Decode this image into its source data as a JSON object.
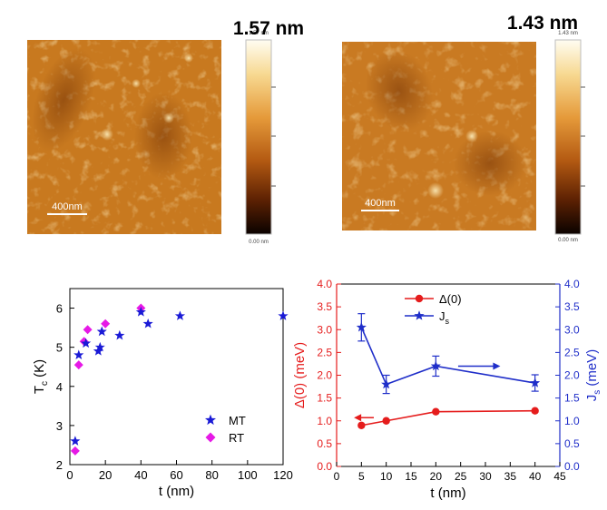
{
  "afm_panels": [
    {
      "roughness_label": "1.57 nm",
      "scalebar_label": "400nm",
      "colorbar_max": "1.57 nm",
      "colorbar_min": "0.00 nm"
    },
    {
      "roughness_label": "1.43 nm",
      "scalebar_label": "400nm",
      "colorbar_max": "1.43 nm",
      "colorbar_min": "0.00 nm"
    }
  ],
  "colors": {
    "mt": "#1a1ad6",
    "rt": "#e619e6",
    "delta": "#e51c1c",
    "js": "#1f2ec9"
  },
  "chart_data": [
    {
      "type": "scatter",
      "title": "",
      "xlabel": "t (nm)",
      "ylabel_main": "T",
      "ylabel_sub": "c",
      "ylabel_unit": " (K)",
      "xlim": [
        0,
        120
      ],
      "ylim": [
        2,
        6.5
      ],
      "xticks": [
        "0",
        "20",
        "40",
        "60",
        "80",
        "100",
        "120"
      ],
      "yticks": [
        "2",
        "3",
        "4",
        "5",
        "6"
      ],
      "legend_position": "bottom-right",
      "series": [
        {
          "name": "MT",
          "marker": "star",
          "x": [
            3,
            5,
            9,
            16,
            17,
            18,
            28,
            40,
            44,
            62,
            120
          ],
          "y": [
            2.6,
            4.8,
            5.1,
            4.9,
            5.0,
            5.4,
            5.3,
            5.9,
            5.6,
            5.8,
            5.8
          ]
        },
        {
          "name": "RT",
          "marker": "diamond",
          "x": [
            3,
            5,
            8,
            10,
            20,
            40
          ],
          "y": [
            2.35,
            4.55,
            5.15,
            5.45,
            5.6,
            6.0
          ]
        }
      ]
    },
    {
      "type": "line",
      "title": "",
      "xlabel": "t (nm)",
      "ylabel_left": "Δ(0) (meV)",
      "ylabel_right_main": "J",
      "ylabel_right_sub": "s",
      "ylabel_right_unit": " (meV)",
      "xlim": [
        0,
        45
      ],
      "ylim_left": [
        0,
        4
      ],
      "ylim_right": [
        0,
        4
      ],
      "xticks": [
        "0",
        "5",
        "10",
        "15",
        "20",
        "25",
        "30",
        "35",
        "40",
        "45"
      ],
      "yticks_left": [
        "0.0",
        "0.5",
        "1.0",
        "1.5",
        "2.0",
        "2.5",
        "3.0",
        "3.5",
        "4.0"
      ],
      "yticks_right": [
        "0.0",
        "0.5",
        "1.0",
        "1.5",
        "2.0",
        "2.5",
        "3.0",
        "3.5",
        "4.0"
      ],
      "legend_position": "top-center",
      "series": [
        {
          "name": "Δ(0)",
          "axis": "left",
          "marker": "circle",
          "x": [
            5,
            10,
            20,
            40
          ],
          "y": [
            0.9,
            1.0,
            1.2,
            1.22
          ]
        },
        {
          "name": "J",
          "name_sub": "s",
          "axis": "right",
          "marker": "star",
          "x": [
            5,
            10,
            20,
            40
          ],
          "y": [
            3.05,
            1.8,
            2.2,
            1.83
          ],
          "err": [
            0.3,
            0.2,
            0.22,
            0.18
          ]
        }
      ]
    }
  ]
}
